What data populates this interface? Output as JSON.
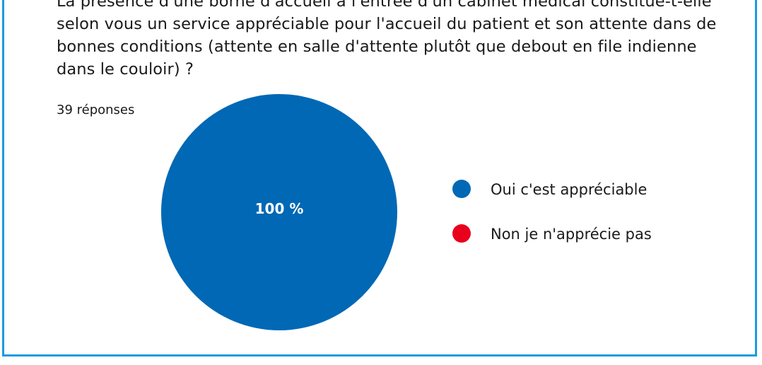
{
  "question": "La présence d'une borne d'accueil à l'entrée d'un cabinet médical constitue-t-elle selon vous un service appréciable pour l'accueil du patient et son attente dans de bonnes conditions (attente en salle d'attente plutôt que debout en file indienne dans le couloir) ?",
  "response_count": "39 réponses",
  "colors": {
    "frame": "#1a9be0",
    "oui": "#0068b5",
    "non": "#e8001c"
  },
  "chart_data": {
    "type": "pie",
    "title": "",
    "categories": [
      "Oui c'est appréciable",
      "Non je n'apprécie pas"
    ],
    "values": [
      100,
      0
    ],
    "data_labels": [
      "100 %",
      ""
    ],
    "colors": [
      "#0068b5",
      "#e8001c"
    ],
    "legend_position": "right"
  }
}
